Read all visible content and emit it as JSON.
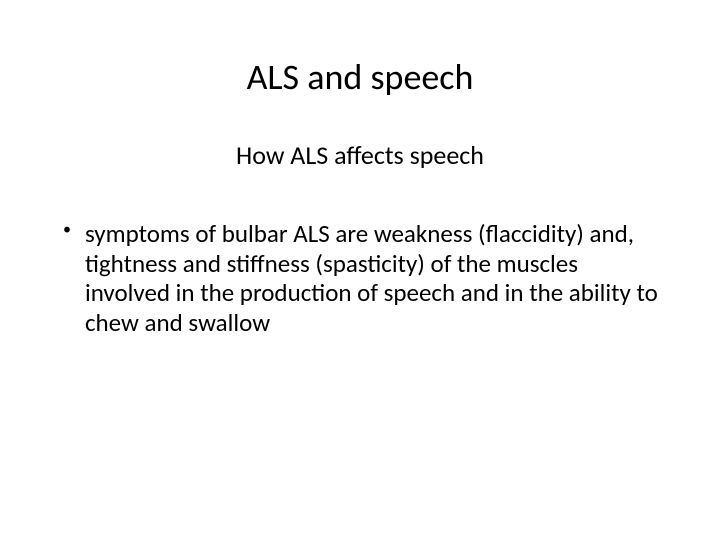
{
  "slide": {
    "title": "ALS and speech",
    "subtitle": "How ALS affects speech",
    "bullets": [
      {
        "marker": "•",
        "text": "symptoms of bulbar ALS are weakness (flaccidity) and, tightness and stiffness (spasticity) of the muscles involved in the production of speech and in the ability to chew and swallow"
      }
    ]
  },
  "styling": {
    "background_color": "#ffffff",
    "text_color": "#000000",
    "title_fontsize": 36,
    "subtitle_fontsize": 26,
    "body_fontsize": 25,
    "font_family": "Calibri"
  }
}
